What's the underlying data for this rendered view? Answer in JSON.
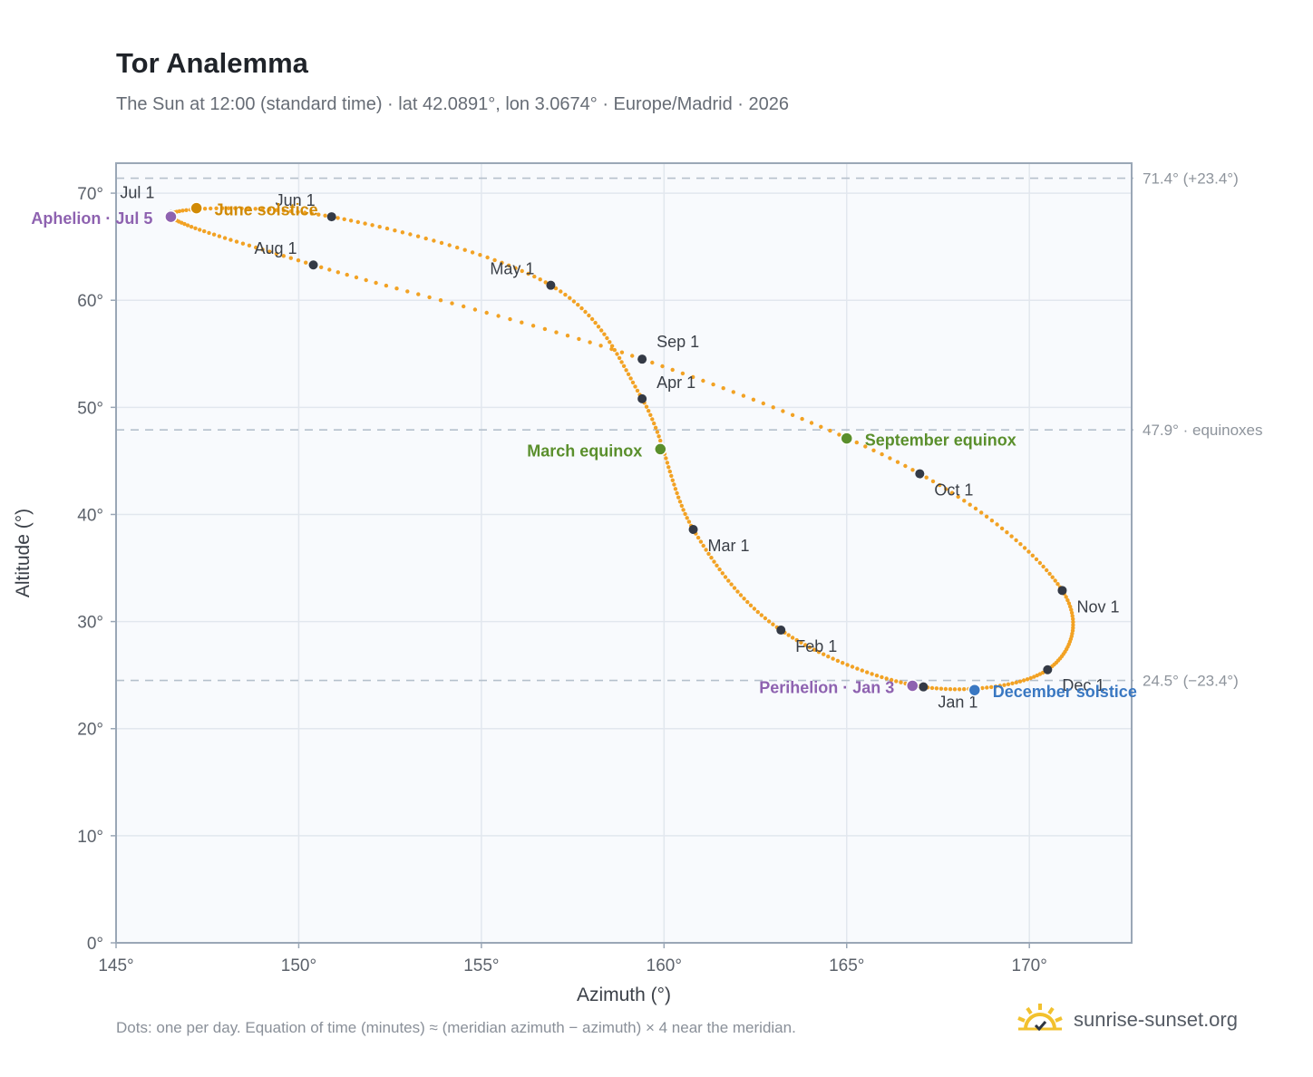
{
  "title": "Tor Analemma",
  "subtitle": "The Sun at 12:00 (standard time) · lat 42.0891°, lon 3.0674° · Europe/Madrid · 2026",
  "footnote": "Dots: one per day. Equation of time (minutes) ≈ (meridian azimuth − azimuth) × 4 near the meridian.",
  "brand": "sunrise-sunset.org",
  "colors": {
    "curve": "#f2a224",
    "month_marker": "#343a46",
    "aphelion": "#8e62b0",
    "june_solstice": "#d18a05",
    "december_solstice": "#3a78c2",
    "equinox": "#5a8f2c",
    "reference_line": "#b5c0cc",
    "reference_text": "#8e949c",
    "plot_bg": "#f8fafd",
    "frame": "#9aa7b6",
    "grid": "#e2e7ee",
    "brand_sun": "#f2c12e"
  },
  "chart_data": {
    "type": "scatter",
    "xlabel": "Azimuth (°)",
    "ylabel": "Altitude (°)",
    "xlim": [
      145,
      172.8
    ],
    "ylim": [
      0,
      72.8
    ],
    "x_ticks": [
      "145°",
      "150°",
      "155°",
      "160°",
      "165°",
      "170°"
    ],
    "y_ticks": [
      "0°",
      "10°",
      "20°",
      "30°",
      "40°",
      "50°",
      "60°",
      "70°"
    ],
    "grid": true,
    "reference_lines": [
      {
        "altitude": 71.4,
        "label": "71.4° (+23.4°)"
      },
      {
        "altitude": 47.9,
        "label": "47.9° · equinoxes"
      },
      {
        "altitude": 24.5,
        "label": "24.5° (−23.4°)"
      }
    ],
    "month_markers": [
      {
        "label": "Jan 1",
        "az": 167.1,
        "alt": 23.9
      },
      {
        "label": "Feb 1",
        "az": 163.2,
        "alt": 29.2
      },
      {
        "label": "Mar 1",
        "az": 160.8,
        "alt": 38.6
      },
      {
        "label": "Apr 1",
        "az": 159.4,
        "alt": 50.8
      },
      {
        "label": "May 1",
        "az": 156.9,
        "alt": 61.4
      },
      {
        "label": "Jun 1",
        "az": 150.9,
        "alt": 67.8
      },
      {
        "label": "Jul 1",
        "az": 146.5,
        "alt": 68.0
      },
      {
        "label": "Aug 1",
        "az": 150.4,
        "alt": 63.3
      },
      {
        "label": "Sep 1",
        "az": 159.4,
        "alt": 54.5
      },
      {
        "label": "Oct 1",
        "az": 167.0,
        "alt": 43.8
      },
      {
        "label": "Nov 1",
        "az": 170.9,
        "alt": 32.9
      },
      {
        "label": "Dec 1",
        "az": 170.5,
        "alt": 25.5
      }
    ],
    "events": [
      {
        "label": "Aphelion · Jul 5",
        "az": 146.5,
        "alt": 67.8,
        "kind": "aphelion"
      },
      {
        "label": "June solstice",
        "az": 147.2,
        "alt": 68.6,
        "kind": "june_solstice"
      },
      {
        "label": "March equinox",
        "az": 159.9,
        "alt": 46.1,
        "kind": "equinox"
      },
      {
        "label": "September equinox",
        "az": 165.0,
        "alt": 47.1,
        "kind": "equinox"
      },
      {
        "label": "Perihelion · Jan 3",
        "az": 166.8,
        "alt": 24.0,
        "kind": "aphelion"
      },
      {
        "label": "December solstice",
        "az": 168.5,
        "alt": 23.6,
        "kind": "december_solstice"
      }
    ]
  }
}
